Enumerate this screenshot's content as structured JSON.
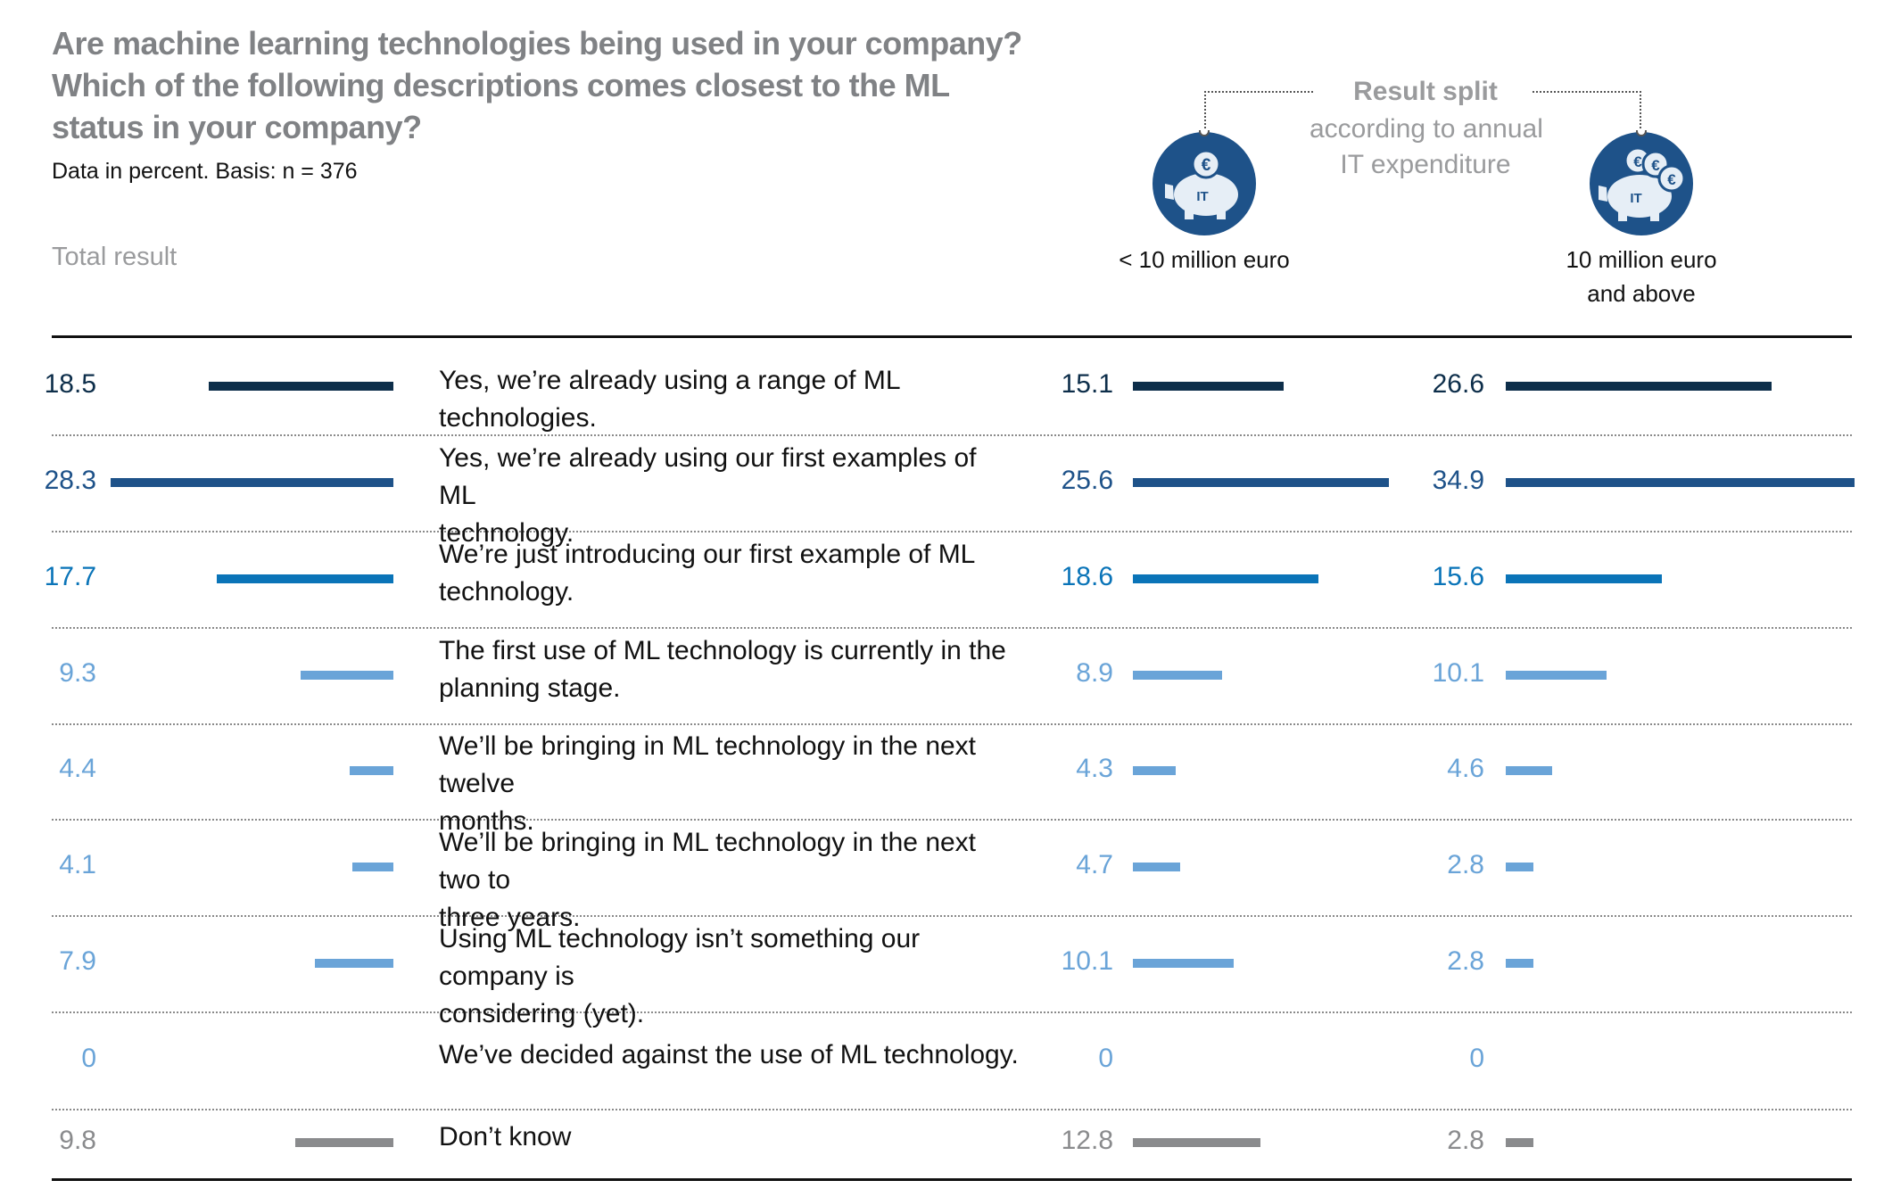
{
  "title_lines": [
    "Are machine learning technologies being used in your company?",
    "Which of the following descriptions comes closest to the ML",
    "status in your company?"
  ],
  "subtitle": "Data in percent. Basis: n = 376",
  "total_label": "Total result",
  "split_title_bold": "Result split",
  "split_title_lines": [
    "according to annual",
    "IT expenditure"
  ],
  "icon_text": "IT",
  "icon_currency": "€",
  "colors": {
    "dark_navy": "#0d2e4a",
    "navy": "#1e5289",
    "blue": "#0a74b8",
    "light_blue": "#6aa4d8",
    "gray": "#8a8b8d",
    "icon_bg": "#1e5289"
  },
  "chart_data": {
    "type": "bar",
    "title": "Are machine learning technologies being used in your company? Which of the following descriptions comes closest to the ML status in your company?",
    "subtitle": "Data in percent. Basis: n = 376",
    "categories": [
      "Yes, we’re already using a range of ML technologies.",
      "Yes, we’re already using our first examples of ML technology.",
      "We’re just introducing our first example of ML technology.",
      "The first use of ML technology is currently in the planning stage.",
      "We’ll be bringing in ML technology in the next twelve months.",
      "We’ll be bringing in ML technology in the next two to three years.",
      "Using ML technology isn’t something our company is considering (yet).",
      "We’ve decided against the use of ML technology.",
      "Don’t know"
    ],
    "category_lines": [
      [
        "Yes, we’re already using a range of ML technologies."
      ],
      [
        "Yes, we’re already using our first examples of ML",
        "technology."
      ],
      [
        "We’re just introducing our first example of ML",
        "technology."
      ],
      [
        "The first use of ML technology is currently in the",
        "planning stage."
      ],
      [
        "We’ll be bringing in ML technology in the next twelve",
        "months."
      ],
      [
        "We’ll be bringing in ML technology in the next two to",
        "three years."
      ],
      [
        "Using ML technology isn’t something our company is",
        "considering (yet)."
      ],
      [
        "We’ve decided against the use of ML technology."
      ],
      [
        "Don’t know"
      ]
    ],
    "row_colors": [
      "#0d2e4a",
      "#1e5289",
      "#0a74b8",
      "#6aa4d8",
      "#6aa4d8",
      "#6aa4d8",
      "#6aa4d8",
      "#6aa4d8",
      "#8a8b8d"
    ],
    "series": [
      {
        "name": "Total result",
        "values": [
          18.5,
          28.3,
          17.7,
          9.3,
          4.4,
          4.1,
          7.9,
          0,
          9.8
        ],
        "labels": [
          "18.5",
          "28.3",
          "17.7",
          "9.3",
          "4.4",
          "4.1",
          "7.9",
          "0",
          "9.8"
        ]
      },
      {
        "name": "< 10 million euro",
        "values": [
          15.1,
          25.6,
          18.6,
          8.9,
          4.3,
          4.7,
          10.1,
          0,
          12.8
        ],
        "labels": [
          "15.1",
          "25.6",
          "18.6",
          "8.9",
          "4.3",
          "4.7",
          "10.1",
          "0",
          "12.8"
        ]
      },
      {
        "name": "10 million euro and above",
        "values": [
          26.6,
          34.9,
          15.6,
          10.1,
          4.6,
          2.8,
          2.8,
          0,
          2.8
        ],
        "labels": [
          "26.6",
          "34.9",
          "15.6",
          "10.1",
          "4.6",
          "2.8",
          "2.8",
          "0",
          "2.8"
        ]
      }
    ],
    "group_labels": [
      [
        "< 10 million euro"
      ],
      [
        "10 million euro",
        "and above"
      ]
    ],
    "ylim": [
      0,
      35
    ],
    "grid": false,
    "legend": "none"
  }
}
